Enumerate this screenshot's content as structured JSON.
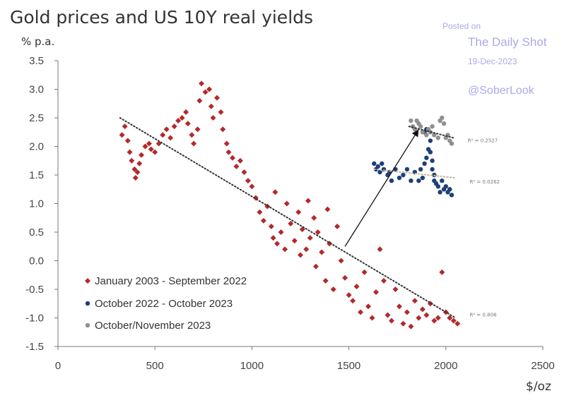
{
  "header": {
    "title": "Gold prices and US 10Y real yields",
    "y_unit": "% p.a.",
    "x_unit": "$/oz"
  },
  "source": {
    "posted": "Posted on",
    "name": "The Daily Shot",
    "date": "19-Dec-2023",
    "handle": "@SoberLook"
  },
  "chart_data": {
    "type": "scatter",
    "title": "Gold prices and US 10Y real yields",
    "xlabel": "$/oz",
    "ylabel": "% p.a.",
    "xlim": [
      0,
      2500
    ],
    "ylim": [
      -1.5,
      3.5
    ],
    "xticks": [
      "0",
      "500",
      "1000",
      "1500",
      "2000",
      "2500"
    ],
    "yticks": [
      "3.5",
      "3.0",
      "2.5",
      "2.0",
      "1.5",
      "1.0",
      "0.5",
      "0.0",
      "-0.5",
      "-1.0",
      "-1.5"
    ],
    "grid": false,
    "legend_position": "bottom-left",
    "series": [
      {
        "name": "January 2003 - September 2022",
        "color": "#b22a2a",
        "marker": "diamond",
        "points": [
          [
            330,
            2.2
          ],
          [
            345,
            2.35
          ],
          [
            360,
            2.1
          ],
          [
            370,
            1.9
          ],
          [
            380,
            1.75
          ],
          [
            395,
            1.6
          ],
          [
            400,
            1.45
          ],
          [
            410,
            1.55
          ],
          [
            420,
            1.7
          ],
          [
            430,
            1.85
          ],
          [
            450,
            2.0
          ],
          [
            470,
            2.05
          ],
          [
            480,
            1.95
          ],
          [
            500,
            1.9
          ],
          [
            520,
            2.05
          ],
          [
            540,
            2.2
          ],
          [
            560,
            2.3
          ],
          [
            580,
            2.15
          ],
          [
            600,
            2.35
          ],
          [
            620,
            2.45
          ],
          [
            640,
            2.5
          ],
          [
            660,
            2.6
          ],
          [
            670,
            2.4
          ],
          [
            690,
            2.2
          ],
          [
            700,
            2.05
          ],
          [
            720,
            2.3
          ],
          [
            730,
            2.8
          ],
          [
            740,
            3.1
          ],
          [
            760,
            2.95
          ],
          [
            780,
            3.0
          ],
          [
            790,
            2.7
          ],
          [
            800,
            2.5
          ],
          [
            820,
            2.85
          ],
          [
            840,
            2.6
          ],
          [
            850,
            2.3
          ],
          [
            870,
            2.05
          ],
          [
            880,
            1.9
          ],
          [
            900,
            1.8
          ],
          [
            920,
            1.65
          ],
          [
            940,
            1.75
          ],
          [
            960,
            1.55
          ],
          [
            980,
            1.4
          ],
          [
            1000,
            1.3
          ],
          [
            1020,
            1.1
          ],
          [
            1040,
            0.85
          ],
          [
            1060,
            0.7
          ],
          [
            1080,
            0.95
          ],
          [
            1100,
            0.6
          ],
          [
            1110,
            0.4
          ],
          [
            1120,
            1.2
          ],
          [
            1130,
            0.3
          ],
          [
            1150,
            0.5
          ],
          [
            1170,
            0.2
          ],
          [
            1180,
            1.0
          ],
          [
            1200,
            0.65
          ],
          [
            1220,
            0.35
          ],
          [
            1240,
            0.85
          ],
          [
            1250,
            0.1
          ],
          [
            1260,
            0.55
          ],
          [
            1280,
            0.2
          ],
          [
            1290,
            1.05
          ],
          [
            1300,
            0.4
          ],
          [
            1320,
            0.75
          ],
          [
            1330,
            -0.1
          ],
          [
            1340,
            0.5
          ],
          [
            1360,
            0.15
          ],
          [
            1380,
            -0.35
          ],
          [
            1390,
            0.9
          ],
          [
            1400,
            0.3
          ],
          [
            1420,
            -0.5
          ],
          [
            1440,
            0.6
          ],
          [
            1460,
            0.0
          ],
          [
            1480,
            -0.3
          ],
          [
            1500,
            -0.6
          ],
          [
            1520,
            -0.7
          ],
          [
            1540,
            -0.45
          ],
          [
            1560,
            -0.9
          ],
          [
            1580,
            -0.2
          ],
          [
            1600,
            -0.8
          ],
          [
            1620,
            -1.0
          ],
          [
            1640,
            -0.55
          ],
          [
            1660,
            0.2
          ],
          [
            1680,
            -0.35
          ],
          [
            1700,
            -0.95
          ],
          [
            1720,
            -1.05
          ],
          [
            1740,
            -0.5
          ],
          [
            1760,
            -0.8
          ],
          [
            1780,
            -1.1
          ],
          [
            1800,
            -0.9
          ],
          [
            1820,
            -1.15
          ],
          [
            1840,
            -0.7
          ],
          [
            1860,
            -1.0
          ],
          [
            1880,
            -0.85
          ],
          [
            1900,
            -0.95
          ],
          [
            1920,
            -0.75
          ],
          [
            1940,
            -1.05
          ],
          [
            1960,
            -1.0
          ],
          [
            1980,
            -0.2
          ],
          [
            2000,
            -0.9
          ],
          [
            2020,
            -1.0
          ],
          [
            2040,
            -1.05
          ],
          [
            2060,
            -1.1
          ]
        ]
      },
      {
        "name": "October 2022 - October 2023",
        "color": "#1d3f7a",
        "marker": "circle",
        "points": [
          [
            1630,
            1.7
          ],
          [
            1640,
            1.6
          ],
          [
            1650,
            1.65
          ],
          [
            1660,
            1.55
          ],
          [
            1670,
            1.7
          ],
          [
            1680,
            1.6
          ],
          [
            1700,
            1.5
          ],
          [
            1710,
            1.55
          ],
          [
            1720,
            1.4
          ],
          [
            1740,
            1.6
          ],
          [
            1760,
            1.45
          ],
          [
            1780,
            1.5
          ],
          [
            1800,
            1.6
          ],
          [
            1820,
            1.4
          ],
          [
            1840,
            1.55
          ],
          [
            1860,
            1.4
          ],
          [
            1870,
            1.6
          ],
          [
            1880,
            1.45
          ],
          [
            1890,
            1.7
          ],
          [
            1900,
            1.8
          ],
          [
            1910,
            1.95
          ],
          [
            1920,
            2.1
          ],
          [
            1930,
            1.75
          ],
          [
            1940,
            1.5
          ],
          [
            1950,
            1.35
          ],
          [
            1960,
            1.3
          ],
          [
            1970,
            1.2
          ],
          [
            1980,
            1.4
          ],
          [
            1990,
            1.25
          ],
          [
            2000,
            1.3
          ],
          [
            2010,
            1.2
          ],
          [
            2020,
            1.25
          ],
          [
            2030,
            1.15
          ],
          [
            1890,
            2.25
          ],
          [
            1900,
            2.3
          ],
          [
            1920,
            1.9
          ],
          [
            1930,
            1.6
          ],
          [
            1940,
            1.4
          ]
        ]
      },
      {
        "name": "October/November 2023",
        "color": "#909090",
        "marker": "circle",
        "points": [
          [
            1820,
            2.45
          ],
          [
            1830,
            2.35
          ],
          [
            1840,
            2.3
          ],
          [
            1850,
            2.45
          ],
          [
            1860,
            2.4
          ],
          [
            1870,
            2.35
          ],
          [
            1880,
            2.25
          ],
          [
            1900,
            2.2
          ],
          [
            1910,
            2.3
          ],
          [
            1920,
            2.25
          ],
          [
            1930,
            2.35
          ],
          [
            1940,
            2.2
          ],
          [
            1960,
            2.15
          ],
          [
            1970,
            2.45
          ],
          [
            1980,
            2.5
          ],
          [
            1990,
            2.4
          ],
          [
            2000,
            2.15
          ],
          [
            2010,
            2.2
          ],
          [
            2020,
            2.1
          ],
          [
            2030,
            2.05
          ]
        ]
      }
    ],
    "trendlines": [
      {
        "name": "January 2003 - September 2022",
        "from": [
          320,
          2.5
        ],
        "to": [
          2050,
          -1.0
        ],
        "color": "#333333",
        "style": "dotted",
        "r2_label": "R² = 0.806"
      },
      {
        "name": "October 2022 - October 2023",
        "from": [
          1630,
          1.6
        ],
        "to": [
          2050,
          1.45
        ],
        "color": "#c2b890",
        "style": "dotted",
        "r2_label": "R² = 0.0262"
      },
      {
        "name": "October/November 2023",
        "from": [
          1810,
          2.35
        ],
        "to": [
          2040,
          2.15
        ],
        "color": "#333333",
        "style": "dotted",
        "r2_label": "R² = 0.2527"
      }
    ],
    "arrow": {
      "from": [
        1480,
        0.25
      ],
      "to": [
        1860,
        2.3
      ]
    }
  }
}
